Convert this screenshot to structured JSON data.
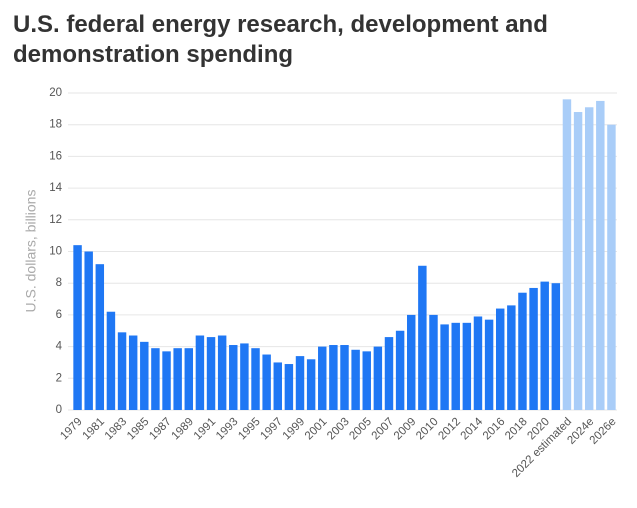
{
  "chart_data": {
    "type": "bar",
    "title": "U.S. federal energy research, development and demonstration spending",
    "y_label": "U.S. dollars, billions",
    "categories": [
      "1979",
      null,
      "1981",
      null,
      "1983",
      null,
      "1985",
      null,
      "1987",
      null,
      "1989",
      null,
      "1991",
      null,
      "1993",
      null,
      "1995",
      null,
      "1997",
      null,
      "1999",
      null,
      "2001",
      null,
      "2003",
      null,
      "2005",
      null,
      "2007",
      null,
      "2009",
      null,
      "2010",
      null,
      "2012",
      null,
      "2014",
      null,
      "2016",
      null,
      "2018",
      null,
      "2020",
      null,
      "2022 estimated",
      null,
      "2024e",
      null,
      "2026e"
    ],
    "values": [
      10.4,
      10.0,
      9.2,
      6.2,
      4.9,
      4.7,
      4.3,
      3.9,
      3.7,
      3.9,
      3.9,
      4.7,
      4.6,
      4.7,
      4.1,
      4.2,
      3.9,
      3.5,
      3.0,
      2.9,
      3.4,
      3.2,
      4.0,
      4.1,
      4.1,
      3.8,
      3.7,
      4.0,
      4.6,
      5.0,
      6.0,
      9.1,
      6.0,
      5.4,
      5.5,
      5.5,
      5.9,
      5.7,
      6.4,
      6.6,
      7.4,
      7.7,
      8.1,
      8.0,
      19.6,
      18.8,
      19.1,
      19.5,
      18.0
    ],
    "colors": [
      "#1f77f4",
      "#1f77f4",
      "#1f77f4",
      "#1f77f4",
      "#1f77f4",
      "#1f77f4",
      "#1f77f4",
      "#1f77f4",
      "#1f77f4",
      "#1f77f4",
      "#1f77f4",
      "#1f77f4",
      "#1f77f4",
      "#1f77f4",
      "#1f77f4",
      "#1f77f4",
      "#1f77f4",
      "#1f77f4",
      "#1f77f4",
      "#1f77f4",
      "#1f77f4",
      "#1f77f4",
      "#1f77f4",
      "#1f77f4",
      "#1f77f4",
      "#1f77f4",
      "#1f77f4",
      "#1f77f4",
      "#1f77f4",
      "#1f77f4",
      "#1f77f4",
      "#1f77f4",
      "#1f77f4",
      "#1f77f4",
      "#1f77f4",
      "#1f77f4",
      "#1f77f4",
      "#1f77f4",
      "#1f77f4",
      "#1f77f4",
      "#1f77f4",
      "#1f77f4",
      "#1f77f4",
      "#1f77f4",
      "#a9cdf8",
      "#a9cdf8",
      "#a9cdf8",
      "#a9cdf8",
      "#a9cdf8"
    ],
    "ylim": [
      0,
      20
    ],
    "yticks": [
      0,
      2,
      4,
      6,
      8,
      10,
      12,
      14,
      16,
      18,
      20
    ],
    "grid": true
  }
}
